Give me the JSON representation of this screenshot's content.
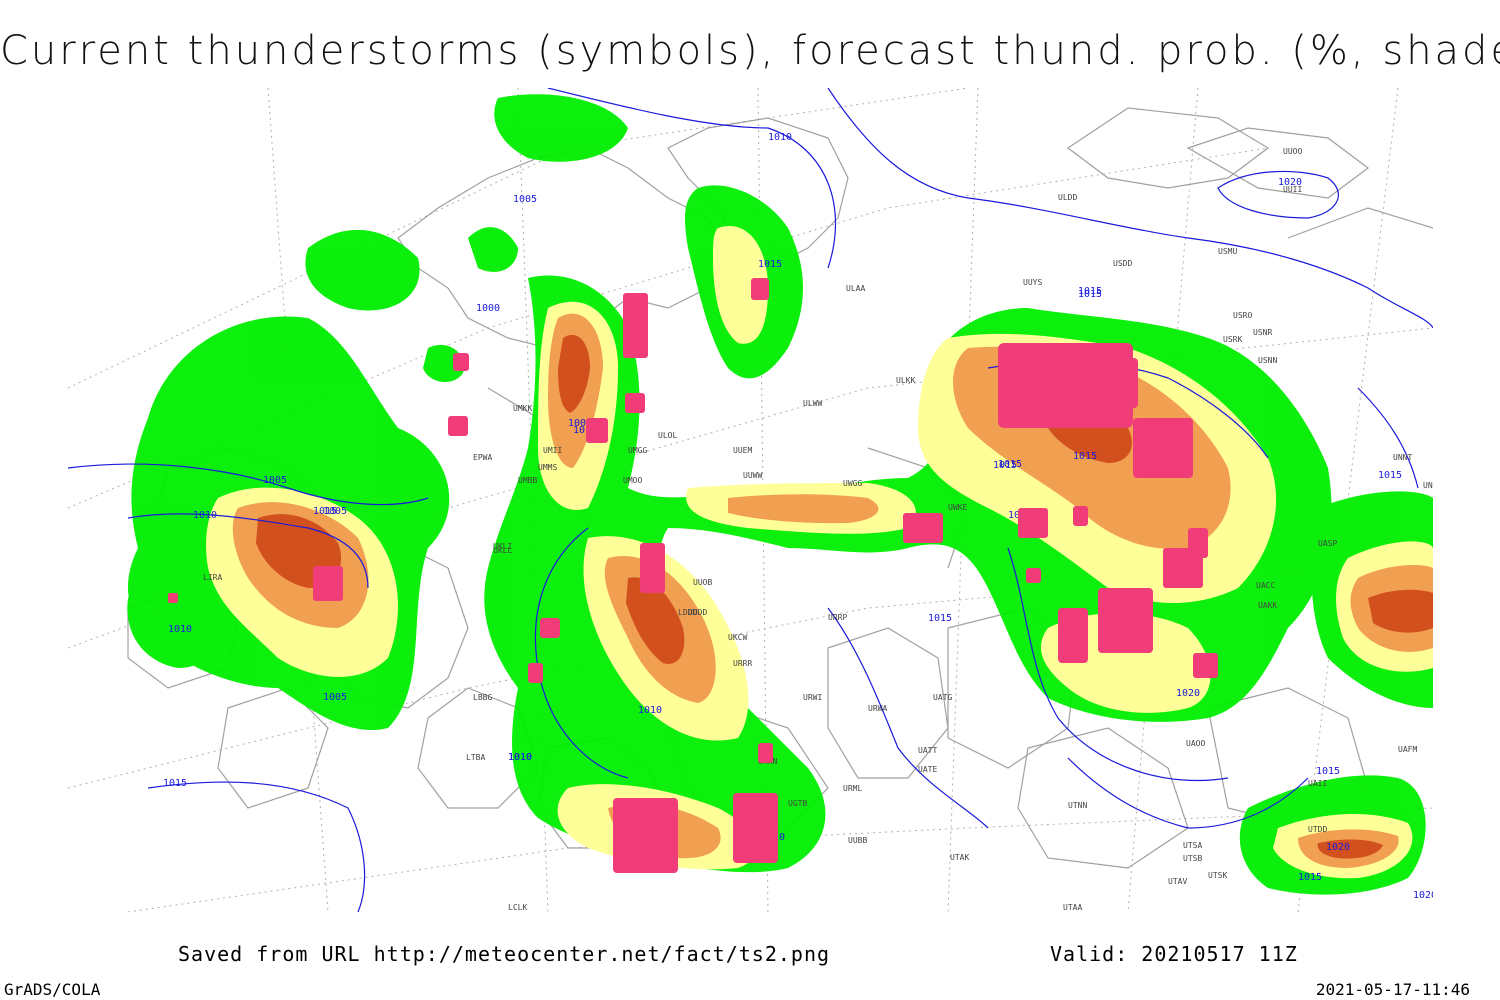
{
  "title": "Current thunderstorms (symbols), forecast thund. prob. (%, shaded)",
  "footer": {
    "saved_from": "Saved from URL http://meteocenter.net/fact/ts2.png",
    "valid": "Valid: 20210517 11Z"
  },
  "credits": "GrADS/COLA",
  "timestamp": "2021-05-17-11:46",
  "colors": {
    "prob_low": "#00ee00",
    "prob_mid": "#ffff99",
    "prob_high": "#f0a050",
    "prob_max": "#d2501e",
    "storm_symbols": "#f03c78",
    "isobars": "#1a1adc",
    "borders": "#a0a0a0"
  },
  "isobar_labels": [
    "1010",
    "1005",
    "1015",
    "1000",
    "1015",
    "1010",
    "1005",
    "1010",
    "1005",
    "1015",
    "1010",
    "1005",
    "1010",
    "1005",
    "1010",
    "1015",
    "1000",
    "1015",
    "1010",
    "1015",
    "1015",
    "1015",
    "1020",
    "1015",
    "1010",
    "1015",
    "1020",
    "1010",
    "1015",
    "1020",
    "1015",
    "1020"
  ],
  "stations": [
    "ULDD",
    "UUYS",
    "USDD",
    "USMU",
    "ULAA",
    "UUOO",
    "UUII",
    "USRO",
    "USRK",
    "USNR",
    "USNN",
    "ULKK",
    "ULWW",
    "UUEM",
    "UUWW",
    "UWGG",
    "UWKE",
    "UUOB",
    "UUDD",
    "UKCW",
    "URRR",
    "URWI",
    "UATG",
    "URWA",
    "UATE",
    "UATT",
    "URML",
    "UUBB",
    "UGTB",
    "URMN",
    "UACC",
    "UAKK",
    "UASP",
    "UNNT",
    "UNBB",
    "UAOO",
    "UAII",
    "UTSA",
    "UTSB",
    "UTAK",
    "UTAV",
    "UTNN",
    "UTAA",
    "UKLL",
    "UKLI",
    "UMMS",
    "UMBB",
    "UMKK",
    "UMOO",
    "ULOL",
    "UMII",
    "EPWA",
    "LIRA",
    "LDDD",
    "LBBG",
    "LTBA",
    "LCLK",
    "UAFM",
    "UTDD",
    "UTSK",
    "UMGG",
    "URRP"
  ]
}
